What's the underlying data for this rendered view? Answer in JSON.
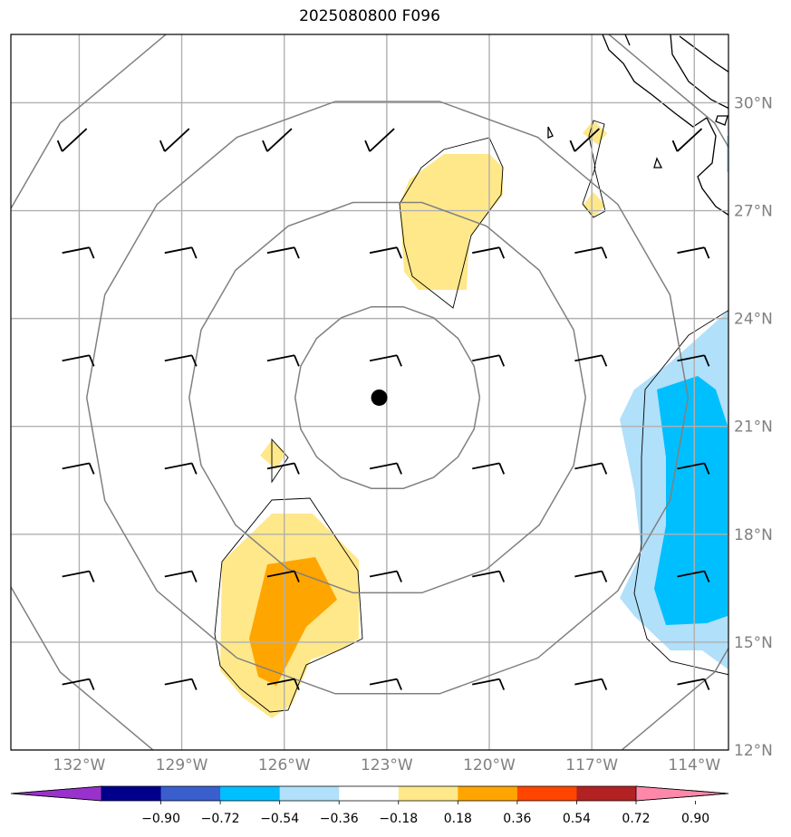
{
  "title": "2025080800 F096",
  "map": {
    "lon_range": [
      -134,
      -113
    ],
    "lat_range": [
      12,
      31.9
    ],
    "meridians": [
      -132,
      -129,
      -126,
      -123,
      -120,
      -117,
      -114
    ],
    "parallels": [
      12,
      15,
      18,
      21,
      24,
      27,
      30
    ],
    "lon_labels": [
      "132°W",
      "129°W",
      "126°W",
      "123°W",
      "120°W",
      "117°W",
      "114°W"
    ],
    "lat_labels": [
      "12°N",
      "15°N",
      "18°N",
      "21°N",
      "24°N",
      "27°N",
      "30°N"
    ],
    "storm_center": {
      "lon": -123.3,
      "lat": 21.8
    },
    "range_rings_deg": [
      2.7,
      5.8,
      8.8,
      12.5
    ],
    "colors": {
      "ring": "#808080",
      "grid": "#b0b0b0",
      "coast": "#000000",
      "storm": "#000000"
    }
  },
  "colorbar": {
    "ticks": [
      "−0.90",
      "−0.72",
      "−0.54",
      "−0.36",
      "−0.18",
      "0.18",
      "0.36",
      "0.54",
      "0.72",
      "0.90"
    ],
    "colors": [
      "#9932cc",
      "#00008b",
      "#3a5fcd",
      "#00bfff",
      "#b0e0fa",
      "#ffffff",
      "#ffe88a",
      "#ffa500",
      "#ff4500",
      "#b22222",
      "#ff88aa"
    ]
  }
}
